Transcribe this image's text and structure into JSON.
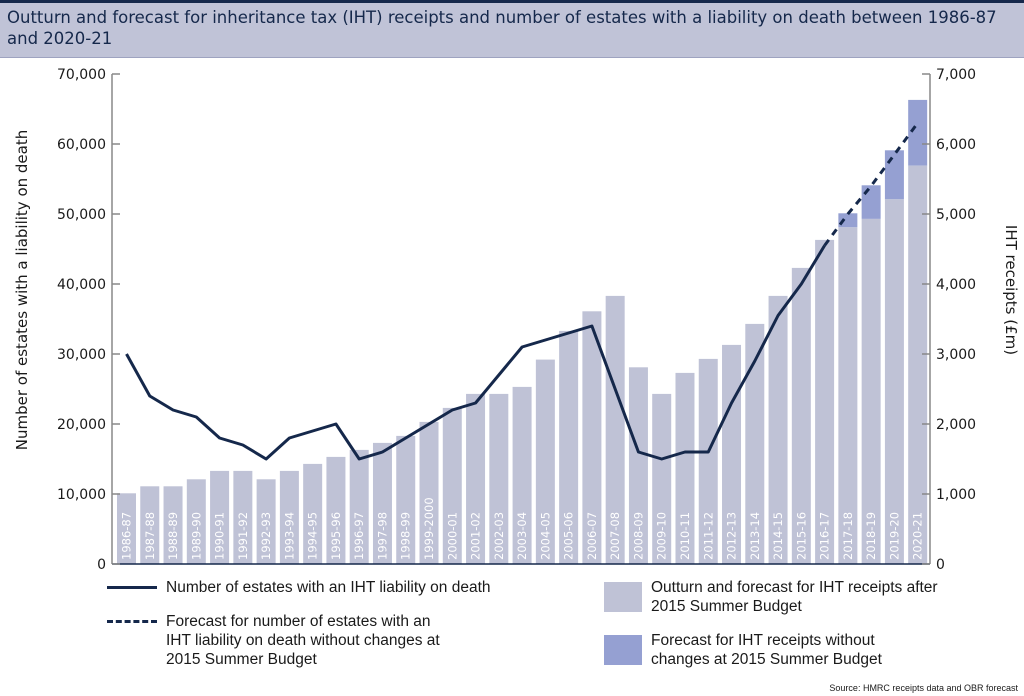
{
  "title": "Outturn and forecast for inheritance tax (IHT) receipts and number of estates with a liability on death between 1986-87 and 2020-21",
  "source": "Source: HMRC receipts data and OBR forecast",
  "chart_data": {
    "type": "bar",
    "title": "Outturn and forecast for inheritance tax (IHT) receipts and number of estates with a liability on death between 1986-87 and 2020-21",
    "ylabel": "Number of estates with a liability on death",
    "y2label": "IHT receipts (£m)",
    "ylim": [
      0,
      70000
    ],
    "y2lim": [
      0,
      7000
    ],
    "yticks": [
      "0",
      "10,000",
      "20,000",
      "30,000",
      "40,000",
      "50,000",
      "60,000",
      "70,000"
    ],
    "y2ticks": [
      "0",
      "1,000",
      "2,000",
      "3,000",
      "4,000",
      "5,000",
      "6,000",
      "7,000"
    ],
    "grid": false,
    "legend_placement": "bottom",
    "categories": [
      "1986-87",
      "1987-88",
      "1988-89",
      "1989-90",
      "1990-91",
      "1991-92",
      "1992-93",
      "1993-94",
      "1994-95",
      "1995-96",
      "1996-97",
      "1997-98",
      "1998-99",
      "1999-2000",
      "2000-01",
      "2001-02",
      "2002-03",
      "2003-04",
      "2004-05",
      "2005-06",
      "2006-07",
      "2007-08",
      "2008-09",
      "2009-10",
      "2010-11",
      "2011-12",
      "2012-13",
      "2013-14",
      "2014-15",
      "2015-16",
      "2016-17",
      "2017-18",
      "2018-19",
      "2019-20",
      "2020-21"
    ],
    "series": [
      {
        "name": "Outturn and forecast for IHT receipts after 2015 Summer Budget",
        "type": "bar",
        "axis": "right",
        "color": "#bfc2d6",
        "values": [
          1010,
          1110,
          1110,
          1210,
          1330,
          1330,
          1210,
          1330,
          1430,
          1530,
          1630,
          1730,
          1830,
          2030,
          2230,
          2430,
          2430,
          2530,
          2920,
          3330,
          3610,
          3830,
          2810,
          2430,
          2730,
          2930,
          3130,
          3430,
          3830,
          4230,
          4630,
          4810,
          4930,
          5210,
          5690
        ]
      },
      {
        "name": "Forecast for IHT receipts without changes at 2015 Summer Budget",
        "type": "bar",
        "axis": "right",
        "color": "#95a0d2",
        "values": [
          null,
          null,
          null,
          null,
          null,
          null,
          null,
          null,
          null,
          null,
          null,
          null,
          null,
          null,
          null,
          null,
          null,
          null,
          null,
          null,
          null,
          null,
          null,
          null,
          null,
          null,
          null,
          null,
          null,
          null,
          null,
          5010,
          5410,
          5910,
          6630
        ]
      },
      {
        "name": "Number of estates with an IHT liability on death",
        "type": "line",
        "axis": "left",
        "color": "#15284b",
        "values": [
          30000,
          24000,
          22000,
          21000,
          18000,
          17000,
          15000,
          18000,
          19000,
          20000,
          15000,
          16000,
          18000,
          20000,
          22000,
          23000,
          27000,
          31000,
          32000,
          33000,
          34000,
          25000,
          16000,
          15000,
          16000,
          16000,
          23000,
          29000,
          35500,
          40000,
          45500,
          null,
          null,
          null,
          null
        ]
      },
      {
        "name": "Forecast for number of estates with an IHT liability on death without changes at 2015 Summer Budget",
        "type": "line-dashed",
        "axis": "left",
        "color": "#15284b",
        "values": [
          null,
          null,
          null,
          null,
          null,
          null,
          null,
          null,
          null,
          null,
          null,
          null,
          null,
          null,
          null,
          null,
          null,
          null,
          null,
          null,
          null,
          null,
          null,
          null,
          null,
          null,
          null,
          null,
          null,
          null,
          45500,
          50000,
          54000,
          58500,
          63000
        ]
      }
    ]
  }
}
